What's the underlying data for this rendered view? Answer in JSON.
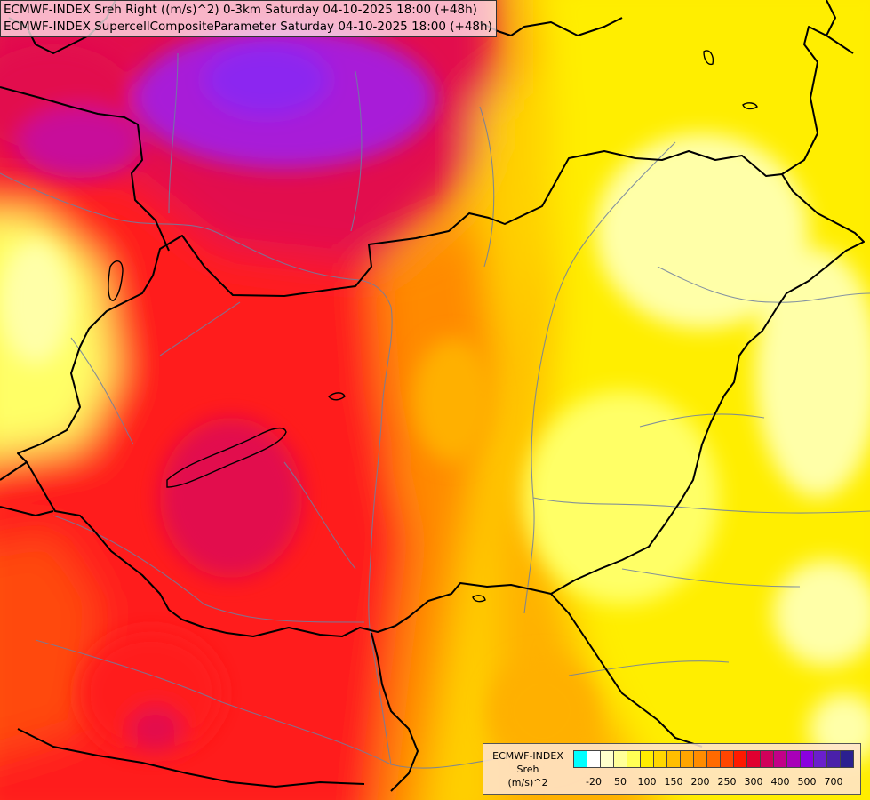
{
  "header": {
    "line1": "ECMWF-INDEX Sreh Right ((m/s)^2) 0-3km Saturday 04-10-2025 18:00 (+48h)",
    "line2": "ECMWF-INDEX SupercellCompositeParameter Saturday 04-10-2025 18:00 (+48h)"
  },
  "legend": {
    "line1": "ECMWF-INDEX",
    "line2": "Sreh",
    "line3": "(m/s)^2",
    "colors": [
      "#00ffff",
      "#ffffff",
      "#ffffcc",
      "#ffff99",
      "#ffff55",
      "#ffee00",
      "#ffd700",
      "#ffbe00",
      "#ffa500",
      "#ff8c00",
      "#ff6a00",
      "#ff4500",
      "#ff1a00",
      "#e00030",
      "#d0005a",
      "#c20088",
      "#a800b8",
      "#8a00e0",
      "#6a1fcc",
      "#4a20aa",
      "#2b2090"
    ],
    "tick_labels": [
      "-20",
      "50",
      "100",
      "150",
      "200",
      "250",
      "300",
      "400",
      "500",
      "700"
    ],
    "tick_boundaries": [
      1,
      3,
      5,
      7,
      9,
      11,
      13,
      15,
      17,
      19
    ]
  },
  "map": {
    "palette": {
      "magenta": "#c8109a",
      "purple": "#a81fd8",
      "violet": "#8c28f0",
      "crimson": "#e20f4e",
      "red": "#ff1a1a",
      "red_orange": "#ff4a10",
      "orange": "#ff8a00",
      "amber": "#ffb000",
      "gold": "#ffd000",
      "yellow": "#ffee00",
      "light_yellow": "#ffff66",
      "pale_yellow": "#ffffa8",
      "border": "#000000",
      "river": "#6f7fa0"
    }
  }
}
